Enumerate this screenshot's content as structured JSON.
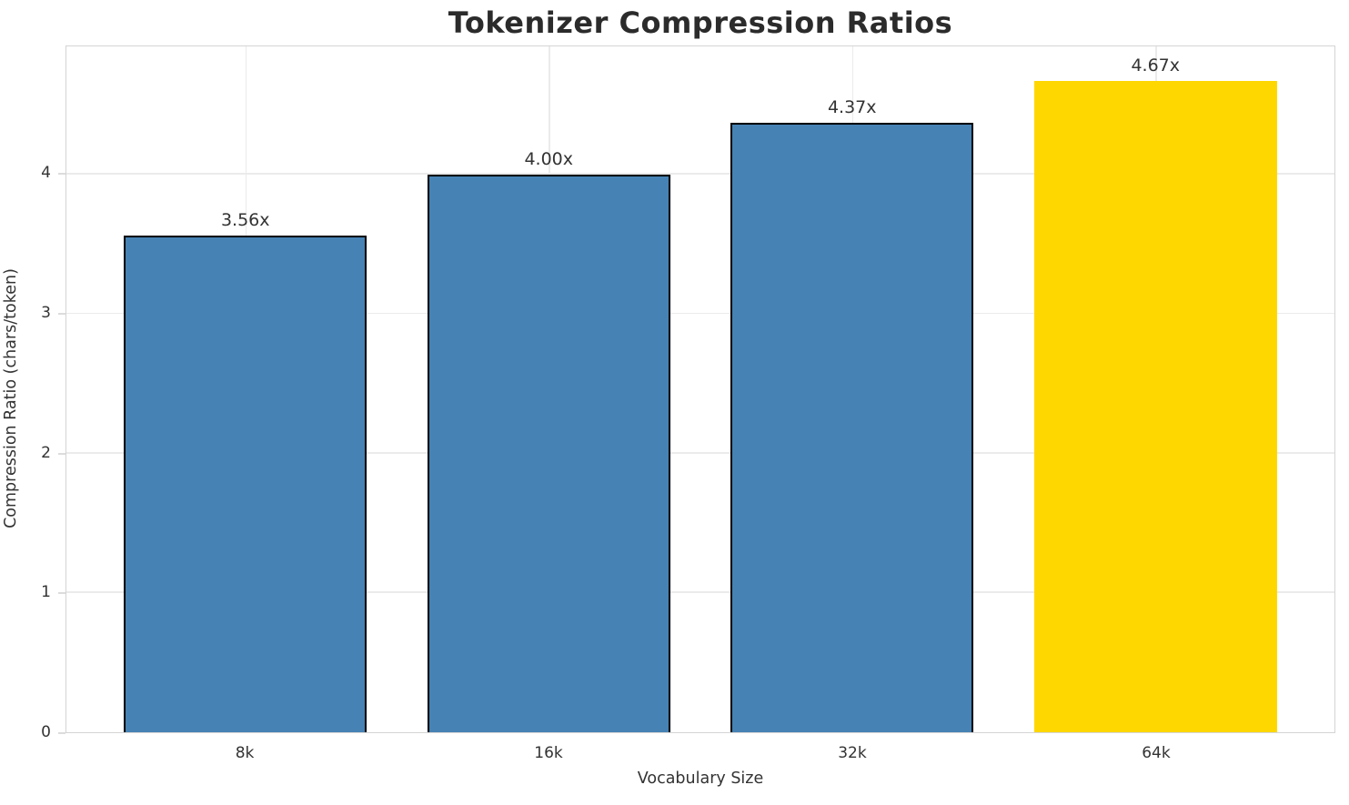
{
  "chart_data": {
    "type": "bar",
    "title": "Tokenizer Compression Ratios",
    "xlabel": "Vocabulary Size",
    "ylabel": "Compression Ratio (chars/token)",
    "categories": [
      "8k",
      "16k",
      "32k",
      "64k"
    ],
    "values": [
      3.56,
      4.0,
      4.37,
      4.67
    ],
    "bar_labels": [
      "3.56x",
      "4.00x",
      "4.37x",
      "4.67x"
    ],
    "bar_colors": [
      "#4682B4",
      "#4682B4",
      "#4682B4",
      "#FFD700"
    ],
    "bar_edge_colors": [
      "#000000",
      "#000000",
      "#000000",
      "none"
    ],
    "highlight_category": "64k",
    "yticks": [
      "0",
      "1",
      "2",
      "3",
      "4"
    ],
    "ytick_values": [
      0,
      1,
      2,
      3,
      4
    ],
    "ylim": [
      0,
      4.92
    ],
    "grid": true,
    "legend_position": "none",
    "style": {
      "grid_color": "#ebebeb",
      "spine_color": "#d4d4d4",
      "text_color": "#333333",
      "title_color": "#2b2b2b",
      "background": "#ffffff"
    }
  }
}
